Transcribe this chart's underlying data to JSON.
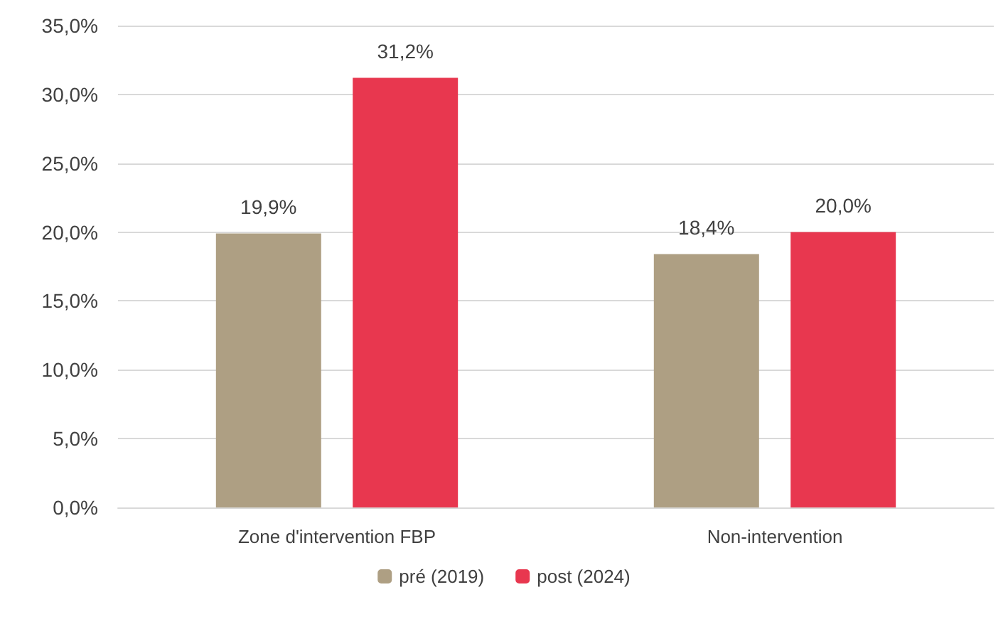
{
  "chart_data": {
    "type": "bar",
    "categories": [
      "Zone d'intervention FBP",
      "Non-intervention"
    ],
    "series": [
      {
        "name": "pré (2019)",
        "color": "#ae9f83",
        "values": [
          19.9,
          18.4
        ],
        "value_labels": [
          "19,9%",
          "18,4%"
        ]
      },
      {
        "name": "post (2024)",
        "color": "#e8374f",
        "values": [
          31.2,
          20.0
        ],
        "value_labels": [
          "31,2%",
          "20,0%"
        ]
      }
    ],
    "ylim": [
      0,
      35
    ],
    "yticks": [
      {
        "value": 0,
        "label": "0,0%"
      },
      {
        "value": 5,
        "label": "5,0%"
      },
      {
        "value": 10,
        "label": "10,0%"
      },
      {
        "value": 15,
        "label": "15,0%"
      },
      {
        "value": 20,
        "label": "20,0%"
      },
      {
        "value": 25,
        "label": "25,0%"
      },
      {
        "value": 30,
        "label": "30,0%"
      },
      {
        "value": 35,
        "label": "35,0%"
      }
    ],
    "grid": "y",
    "legend": "bottom"
  }
}
